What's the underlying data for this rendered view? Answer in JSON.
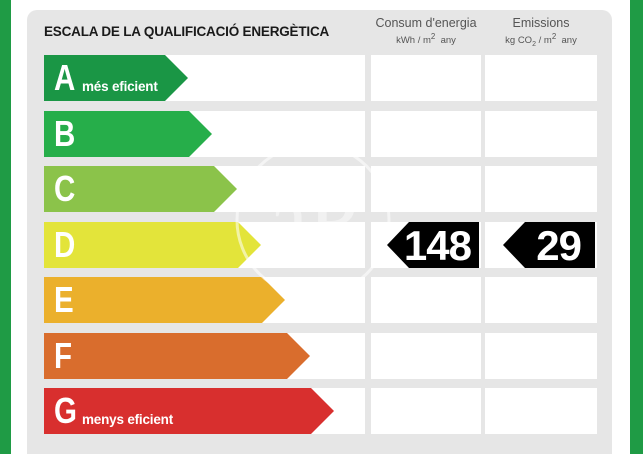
{
  "title": "ESCALA DE LA QUALIFICACIÓ ENERGÈTICA",
  "columns": {
    "energy": {
      "label": "Consum d'energia",
      "unit": "kWh / m",
      "unit_sup": "2",
      "unit_tail": "any"
    },
    "emissions": {
      "label": "Emissions",
      "unit_pre": "kg CO",
      "unit_sub": "2",
      "unit_mid": "/ m",
      "unit_sup": "2",
      "unit_tail": "any"
    }
  },
  "bands": [
    {
      "letter": "A",
      "desc": "més eficient",
      "color": "#1a9645"
    },
    {
      "letter": "B",
      "desc": "",
      "color": "#26ae4a"
    },
    {
      "letter": "C",
      "desc": "",
      "color": "#8bc34a"
    },
    {
      "letter": "D",
      "desc": "",
      "color": "#e3e43a"
    },
    {
      "letter": "E",
      "desc": "",
      "color": "#ebb02c"
    },
    {
      "letter": "F",
      "desc": "",
      "color": "#d96d2d"
    },
    {
      "letter": "G",
      "desc": "menys eficient",
      "color": "#d82f2e"
    }
  ],
  "rating": {
    "band": "D",
    "energy_value": "148",
    "emissions_value": "29"
  },
  "watermark": {
    "text": "aP"
  }
}
